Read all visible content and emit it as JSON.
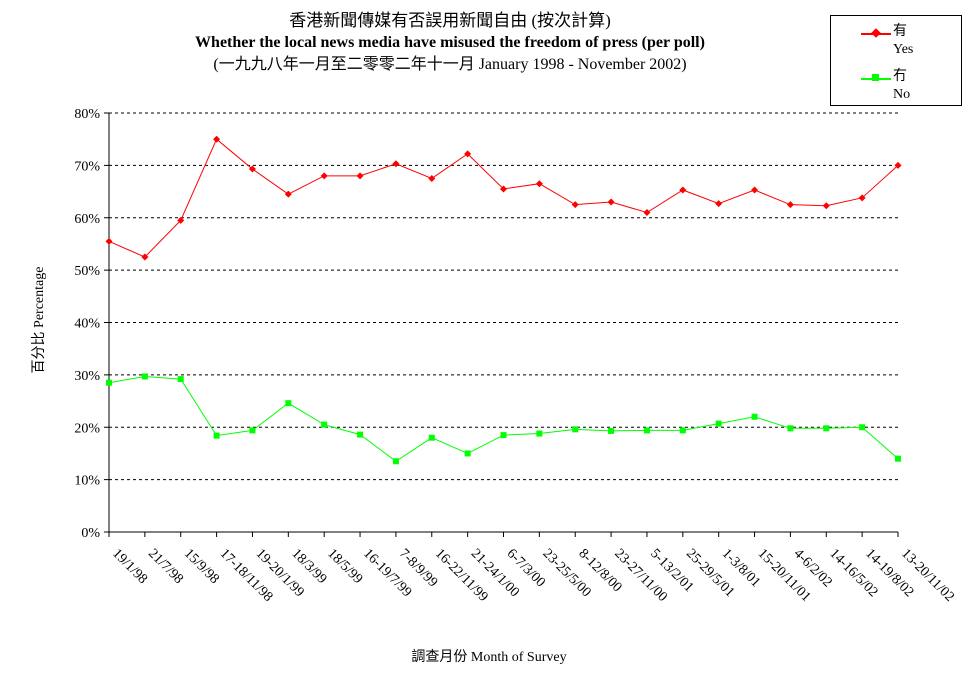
{
  "chart_data": {
    "type": "line",
    "title": "香港新聞傳媒有否誤用新聞自由 (按次計算)",
    "subtitle": "Whether the local news media have misused the freedom of press (per poll)",
    "subtitle2": "(一九九八年一月至二零零二年十一月 January 1998 - November 2002)",
    "ylabel": "百分比 Percentage",
    "xlabel": "調查月份 Month of Survey",
    "ylim": [
      0,
      80
    ],
    "yticks": [
      "0%",
      "10%",
      "20%",
      "30%",
      "40%",
      "50%",
      "60%",
      "70%",
      "80%"
    ],
    "grid": true,
    "legend_position": "top-right",
    "categories": [
      "19/1/98",
      "21/7/98",
      "15/9/98",
      "17-18/11/98",
      "19-20/1/99",
      "18/3/99",
      "18/5/99",
      "16-19/7/99",
      "7-8/9/99",
      "16-22/11/99",
      "21-24/1/00",
      "6-7/3/00",
      "23-25/5/00",
      "8-12/8/00",
      "23-27/11/00",
      "5-13/2/01",
      "25-29/5/01",
      "1-3/8/01",
      "15-20/11/01",
      "4-6/2/02",
      "14-16/5/02",
      "14-19/8/02",
      "13-20/11/02"
    ],
    "series": [
      {
        "name": "有",
        "name_en": "Yes",
        "color": "#ff0000",
        "marker": "diamond",
        "values": [
          55.5,
          52.5,
          59.5,
          75,
          69.3,
          64.5,
          68,
          68,
          70.3,
          67.5,
          72.2,
          65.5,
          66.5,
          62.5,
          63,
          61,
          65.3,
          62.7,
          65.3,
          62.5,
          62.3,
          63.8,
          70
        ]
      },
      {
        "name": "冇",
        "name_en": "No",
        "color": "#00ff00",
        "marker": "square",
        "values": [
          28.5,
          29.7,
          29.2,
          18.4,
          19.4,
          24.6,
          20.5,
          18.6,
          13.5,
          18,
          15,
          18.5,
          18.8,
          19.6,
          19.3,
          19.4,
          19.4,
          20.7,
          22,
          19.8,
          19.8,
          20,
          14
        ]
      }
    ]
  }
}
